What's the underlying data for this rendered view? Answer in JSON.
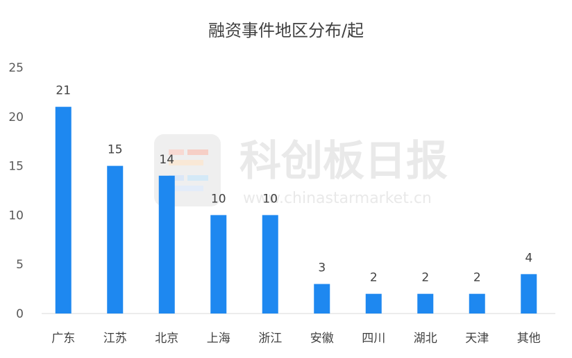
{
  "chart_data": {
    "type": "bar",
    "title": "融资事件地区分布/起",
    "categories": [
      "广东",
      "江苏",
      "北京",
      "上海",
      "浙江",
      "安徽",
      "四川",
      "湖北",
      "天津",
      "其他"
    ],
    "values": [
      21,
      15,
      14,
      10,
      10,
      3,
      2,
      2,
      2,
      4
    ],
    "ylim": [
      0,
      25
    ],
    "yticks": [
      0,
      5,
      10,
      15,
      20,
      25
    ],
    "grid": false,
    "bar_color": "#1e88f0"
  },
  "watermark": {
    "name": "科创板日报",
    "url": "www.chinastarmarket.cn"
  }
}
